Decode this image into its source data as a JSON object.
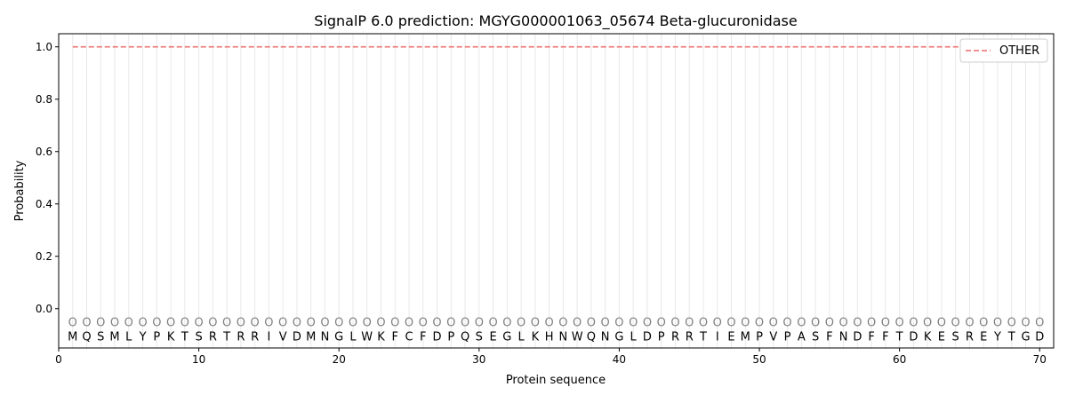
{
  "chart_data": {
    "type": "line",
    "title": "SignalP 6.0 prediction: MGYG000001063_05674 Beta-glucuronidase",
    "xlabel": "Protein sequence",
    "ylabel": "Probability",
    "xlim": [
      0,
      71
    ],
    "ylim": [
      -0.15,
      1.05
    ],
    "xticks": [
      0,
      10,
      20,
      30,
      40,
      50,
      60,
      70
    ],
    "yticks": [
      0.0,
      0.2,
      0.4,
      0.6,
      0.8,
      1.0
    ],
    "ytick_labels": [
      "0.0",
      "0.2",
      "0.4",
      "0.6",
      "0.8",
      "1.0"
    ],
    "legend_placement": "upper-right",
    "grid": "vertical lines at each residue",
    "sequence": [
      "M",
      "Q",
      "S",
      "M",
      "L",
      "Y",
      "P",
      "K",
      "T",
      "S",
      "R",
      "T",
      "R",
      "R",
      "I",
      "V",
      "D",
      "M",
      "N",
      "G",
      "L",
      "W",
      "K",
      "F",
      "C",
      "F",
      "D",
      "P",
      "Q",
      "S",
      "E",
      "G",
      "L",
      "K",
      "H",
      "N",
      "W",
      "Q",
      "N",
      "G",
      "L",
      "D",
      "P",
      "R",
      "R",
      "T",
      "I",
      "E",
      "M",
      "P",
      "V",
      "P",
      "A",
      "S",
      "F",
      "N",
      "D",
      "F",
      "F",
      "T",
      "D",
      "K",
      "E",
      "S",
      "R",
      "E",
      "Y",
      "T",
      "G",
      "D"
    ],
    "predicted_label": "O",
    "series": [
      {
        "name": "OTHER",
        "color": "#f08080",
        "style": "dashed",
        "x_range": [
          1,
          70
        ],
        "value": 1.0
      }
    ]
  }
}
